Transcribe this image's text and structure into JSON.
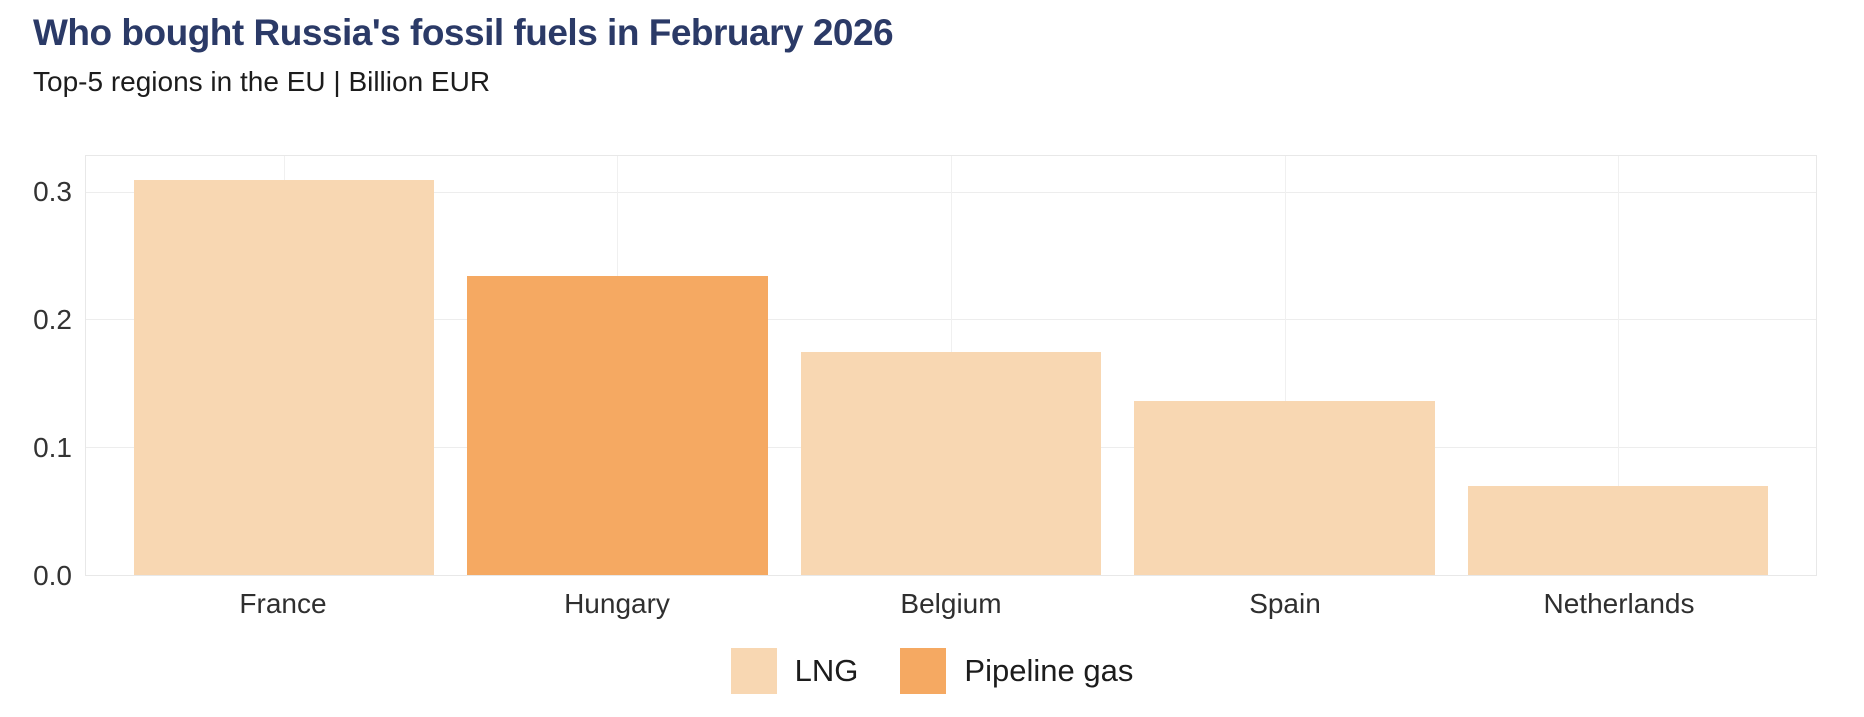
{
  "header": {
    "title": "Who bought Russia's fossil fuels in February 2026",
    "subtitle": "Top-5 regions in the EU | Billion EUR"
  },
  "colors": {
    "title_text": "#2b3a67",
    "lng": "#f8d7b2",
    "pipeline_gas": "#f5a962",
    "gridline": "#ededed",
    "axis_text": "#333333"
  },
  "chart_data": {
    "type": "bar",
    "title": "Who bought Russia's fossil fuels in February 2026",
    "subtitle": "Top-5 regions in the EU | Billion EUR",
    "xlabel": "",
    "ylabel": "Billion EUR",
    "categories": [
      "France",
      "Hungary",
      "Belgium",
      "Spain",
      "Netherlands"
    ],
    "bars": [
      {
        "category": "France",
        "value": 0.31,
        "series": "LNG"
      },
      {
        "category": "Hungary",
        "value": 0.235,
        "series": "Pipeline gas"
      },
      {
        "category": "Belgium",
        "value": 0.175,
        "series": "LNG"
      },
      {
        "category": "Spain",
        "value": 0.137,
        "series": "LNG"
      },
      {
        "category": "Netherlands",
        "value": 0.07,
        "series": "LNG"
      }
    ],
    "series": [
      {
        "name": "LNG",
        "color": "#f8d7b2"
      },
      {
        "name": "Pipeline gas",
        "color": "#f5a962"
      }
    ],
    "ylim": [
      0,
      0.329
    ],
    "yticks": [
      "0.0",
      "0.1",
      "0.2",
      "0.3"
    ],
    "grid": true,
    "legend_position": "bottom"
  }
}
